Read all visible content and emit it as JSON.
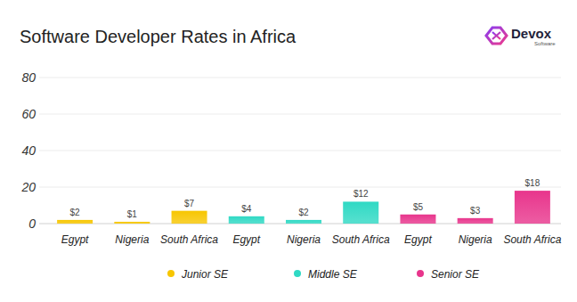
{
  "chart_data": {
    "type": "bar",
    "title": "Software Developer Rates in Africa",
    "logo_text": "Devox",
    "logo_subtext": "Software",
    "categories": [
      "Egypt",
      "Nigeria",
      "South Africa",
      "Egypt",
      "Nigeria",
      "South Africa",
      "Egypt",
      "Nigeria",
      "South Africa"
    ],
    "series": [
      {
        "name": "Junior SE",
        "color": "#f7c600",
        "values": [
          2,
          1,
          7,
          null,
          null,
          null,
          null,
          null,
          null
        ],
        "value_labels": [
          "$2",
          "$1",
          "$7",
          null,
          null,
          null,
          null,
          null,
          null
        ]
      },
      {
        "name": "Middle SE",
        "color": "#2fd9c4",
        "values": [
          null,
          null,
          null,
          4,
          2,
          12,
          null,
          null,
          null
        ],
        "value_labels": [
          null,
          null,
          null,
          "$4",
          "$2",
          "$12",
          null,
          null,
          null
        ]
      },
      {
        "name": "Senior SE",
        "color": "#e8358c",
        "values": [
          null,
          null,
          null,
          null,
          null,
          null,
          5,
          3,
          18
        ],
        "value_labels": [
          null,
          null,
          null,
          null,
          null,
          null,
          "$5",
          "$3",
          "$18"
        ]
      }
    ],
    "ylim": [
      0,
      80
    ],
    "yticks": [
      0,
      20,
      40,
      60,
      80
    ],
    "grid": true,
    "data_labels": true,
    "legend": "bottom"
  }
}
